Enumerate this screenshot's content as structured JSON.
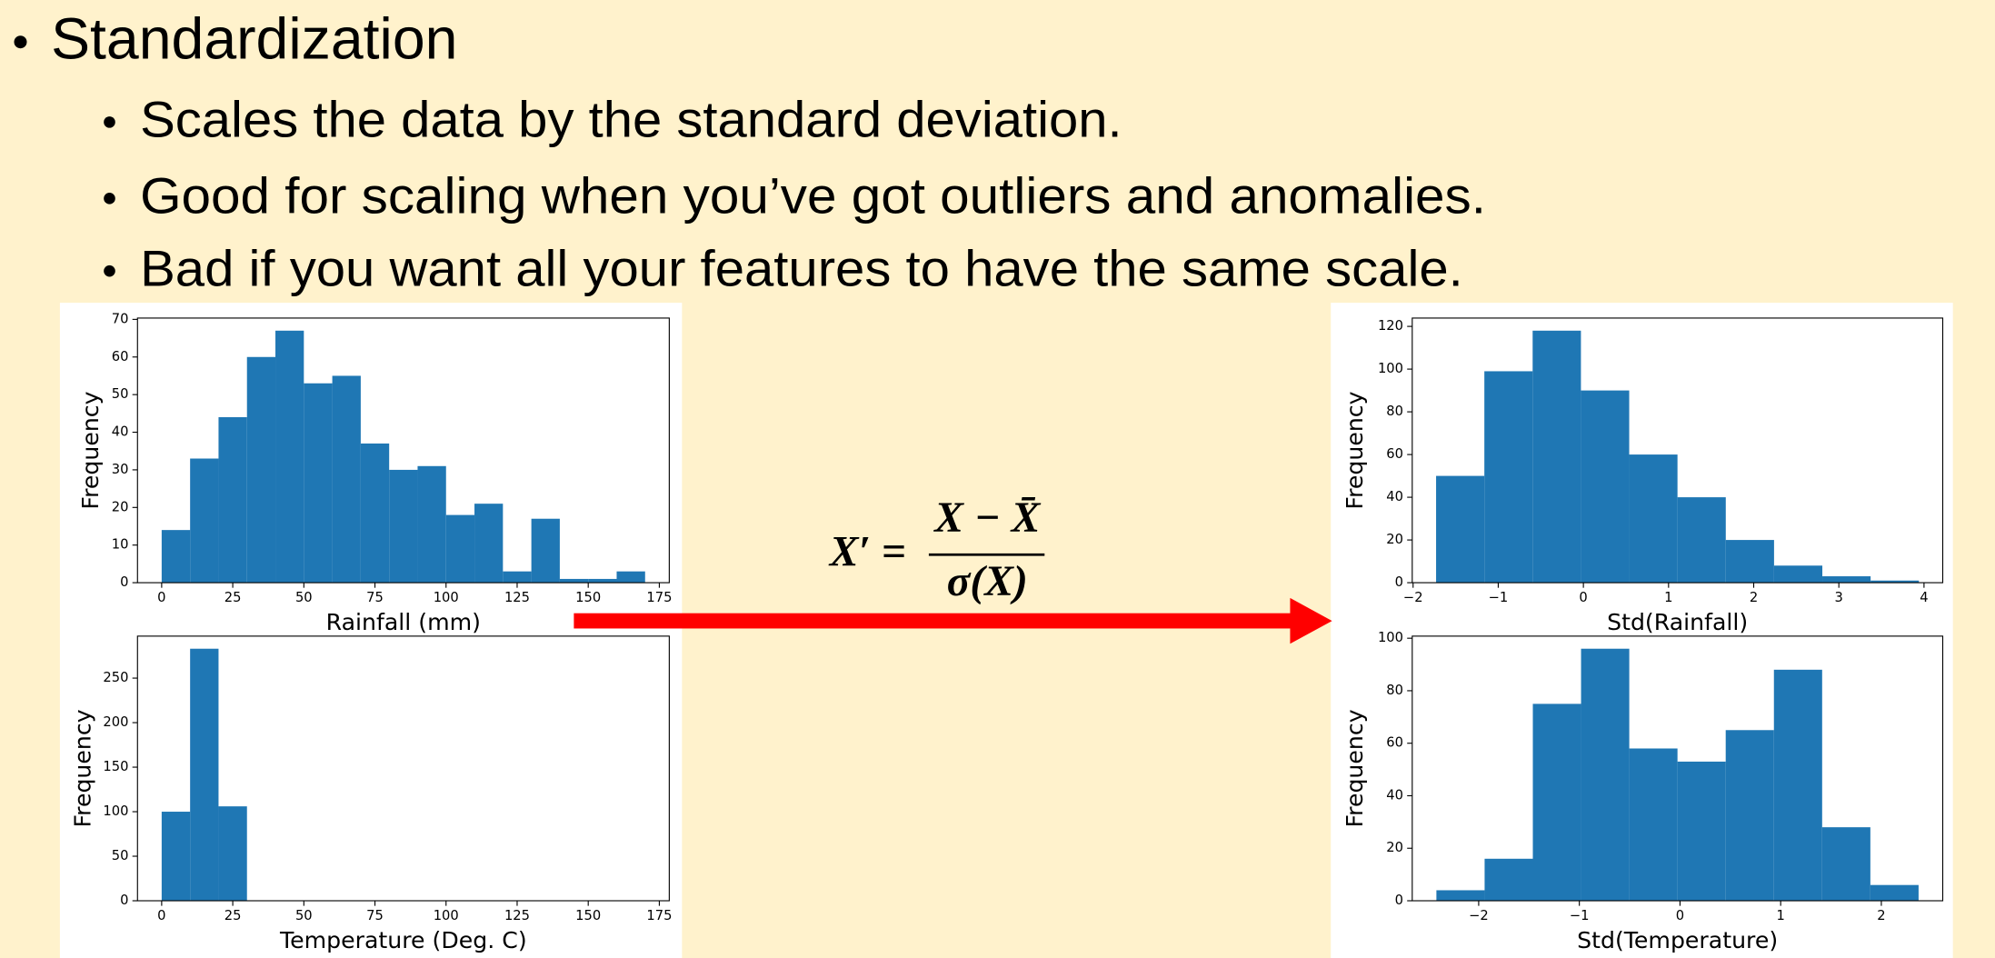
{
  "slide": {
    "title": "Standardization",
    "bullets": [
      "Scales the data by the standard deviation.",
      "Good for scaling when you’ve got outliers and anomalies.",
      "Bad if you want all your features to have the same scale."
    ]
  },
  "formula": {
    "lhs": "X′ =",
    "numerator": "X − X̄",
    "denominator": "σ(X)"
  },
  "chart_data": [
    {
      "type": "histogram",
      "xlabel": "Rainfall (mm)",
      "ylabel": "Frequency",
      "color": "#1f77b4",
      "bins": [
        0,
        10,
        20,
        30,
        40,
        50,
        60,
        70,
        80,
        90,
        100,
        110,
        120,
        130,
        140,
        150,
        160,
        170
      ],
      "values": [
        14,
        33,
        44,
        60,
        67,
        53,
        55,
        37,
        30,
        31,
        18,
        21,
        3,
        17,
        1,
        1,
        3
      ],
      "xlim": [
        -8.5,
        178.5
      ],
      "ylim": [
        0,
        70.35
      ],
      "xticks": [
        0,
        25,
        50,
        75,
        100,
        125,
        150,
        175
      ],
      "yticks": [
        0,
        10,
        20,
        30,
        40,
        50,
        60,
        70
      ]
    },
    {
      "type": "histogram",
      "xlabel": "Temperature (Deg. C)",
      "ylabel": "Frequency",
      "color": "#1f77b4",
      "bins": [
        0,
        10,
        20,
        30
      ],
      "values": [
        100,
        283,
        106
      ],
      "xlim": [
        -8.5,
        178.5
      ],
      "ylim": [
        0,
        297.15
      ],
      "xticks": [
        0,
        25,
        50,
        75,
        100,
        125,
        150,
        175
      ],
      "yticks": [
        0,
        50,
        100,
        150,
        200,
        250
      ]
    },
    {
      "type": "histogram",
      "xlabel": "Std(Rainfall)",
      "ylabel": "Frequency",
      "color": "#1f77b4",
      "bins": [
        -1.73,
        -1.163,
        -0.596,
        -0.029,
        0.538,
        1.105,
        1.672,
        2.239,
        2.806,
        3.373,
        3.94
      ],
      "values": [
        50,
        99,
        118,
        90,
        60,
        40,
        20,
        8,
        3,
        1
      ],
      "xlim": [
        -2.01,
        4.22
      ],
      "ylim": [
        0,
        123.9
      ],
      "xticks": [
        {
          "value": -2,
          "label": "−2"
        },
        {
          "value": -1,
          "label": "−1"
        },
        0,
        1,
        2,
        3,
        4
      ],
      "yticks": [
        0,
        20,
        40,
        60,
        80,
        100,
        120
      ]
    },
    {
      "type": "histogram",
      "xlabel": "Std(Temperature)",
      "ylabel": "Frequency",
      "color": "#1f77b4",
      "bins": [
        -2.42,
        -1.941,
        -1.462,
        -0.983,
        -0.504,
        -0.025,
        0.454,
        0.933,
        1.412,
        1.891,
        2.37
      ],
      "values": [
        4,
        16,
        75,
        96,
        58,
        53,
        65,
        88,
        28,
        6
      ],
      "xlim": [
        -2.66,
        2.61
      ],
      "ylim": [
        0,
        100.8
      ],
      "xticks": [
        {
          "value": -2,
          "label": "−2"
        },
        {
          "value": -1,
          "label": "−1"
        },
        0,
        1,
        2
      ],
      "yticks": [
        0,
        20,
        40,
        60,
        80,
        100
      ]
    }
  ]
}
